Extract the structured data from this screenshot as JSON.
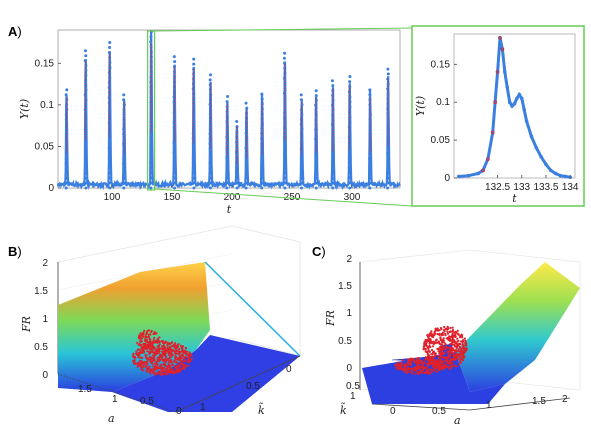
{
  "colors": {
    "series": "#3b7fe0",
    "peaks": "#e0202a",
    "zoom_box": "#66cc55",
    "axis": "#222222"
  },
  "panels": [
    {
      "id": "A",
      "label": "A",
      "suffix": ")"
    },
    {
      "id": "B",
      "label": "B",
      "suffix": ")"
    },
    {
      "id": "C",
      "label": "C",
      "suffix": ")"
    }
  ],
  "chart_data": [
    {
      "panel": "A",
      "type": "line",
      "xlabel": "t",
      "ylabel": "Y(t)",
      "xlim": [
        55,
        340
      ],
      "ylim": [
        0,
        0.19
      ],
      "xticks": [
        100,
        150,
        200,
        250,
        300
      ],
      "yticks": [
        0,
        0.05,
        0.1,
        0.15
      ],
      "ytick_labels": [
        "0",
        "0.05",
        "0.1",
        "0.15"
      ],
      "baseline": 0.004,
      "peaks": [
        {
          "t": 62,
          "y": 0.118
        },
        {
          "t": 78,
          "y": 0.165
        },
        {
          "t": 98,
          "y": 0.175
        },
        {
          "t": 110,
          "y": 0.112
        },
        {
          "t": 132.6,
          "y": 0.188
        },
        {
          "t": 152,
          "y": 0.158
        },
        {
          "t": 168,
          "y": 0.155
        },
        {
          "t": 182,
          "y": 0.136
        },
        {
          "t": 196,
          "y": 0.11
        },
        {
          "t": 204,
          "y": 0.08
        },
        {
          "t": 212,
          "y": 0.102
        },
        {
          "t": 225,
          "y": 0.113
        },
        {
          "t": 244,
          "y": 0.162
        },
        {
          "t": 258,
          "y": 0.112
        },
        {
          "t": 270,
          "y": 0.117
        },
        {
          "t": 284,
          "y": 0.129
        },
        {
          "t": 298,
          "y": 0.134
        },
        {
          "t": 315,
          "y": 0.118
        },
        {
          "t": 330,
          "y": 0.143
        }
      ]
    },
    {
      "panel": "A-inset",
      "type": "line",
      "xlabel": "t",
      "ylabel": "Y(t)",
      "xlim": [
        131.6,
        134.1
      ],
      "ylim": [
        0,
        0.19
      ],
      "xticks": [
        132.5,
        133,
        133.5,
        134
      ],
      "xtick_labels": [
        "132.5",
        "133",
        "133.5",
        "134"
      ],
      "yticks": [
        0,
        0.05,
        0.1,
        0.15
      ],
      "ytick_labels": [
        "0",
        "0.05",
        "0.1",
        "0.15"
      ],
      "x": [
        131.7,
        131.9,
        132.1,
        132.2,
        132.3,
        132.4,
        132.45,
        132.5,
        132.55,
        132.6,
        132.65,
        132.7,
        132.75,
        132.8,
        132.85,
        132.9,
        132.95,
        133.0,
        133.05,
        133.1,
        133.2,
        133.3,
        133.4,
        133.5,
        133.6,
        133.7,
        133.8,
        133.9,
        134.0
      ],
      "y": [
        0.002,
        0.003,
        0.006,
        0.01,
        0.025,
        0.06,
        0.1,
        0.14,
        0.185,
        0.17,
        0.14,
        0.12,
        0.1,
        0.095,
        0.098,
        0.105,
        0.11,
        0.105,
        0.09,
        0.075,
        0.055,
        0.04,
        0.028,
        0.018,
        0.01,
        0.006,
        0.003,
        0.002,
        0.001
      ],
      "peak_marked_range": [
        132.2,
        132.62
      ]
    },
    {
      "panel": "B",
      "type": "scatter",
      "zlabel": "FR",
      "xlabel": "a",
      "ylabel": "k̃",
      "zticks": [
        "0",
        "0.5",
        "1",
        "1.5",
        "2"
      ],
      "aticks": [
        "1.5",
        "1",
        "0.5",
        "0"
      ],
      "kticks": [
        "0",
        "0.5",
        "1"
      ]
    },
    {
      "panel": "C",
      "type": "scatter",
      "zlabel": "FR",
      "xlabel": "a",
      "ylabel": "k̃",
      "zticks": [
        "0",
        "0.5",
        "1",
        "1.5",
        "2"
      ],
      "aticks": [
        "0",
        "0.5",
        "1",
        "1.5",
        "2"
      ],
      "kticks": [
        "0.5",
        "1"
      ]
    }
  ]
}
